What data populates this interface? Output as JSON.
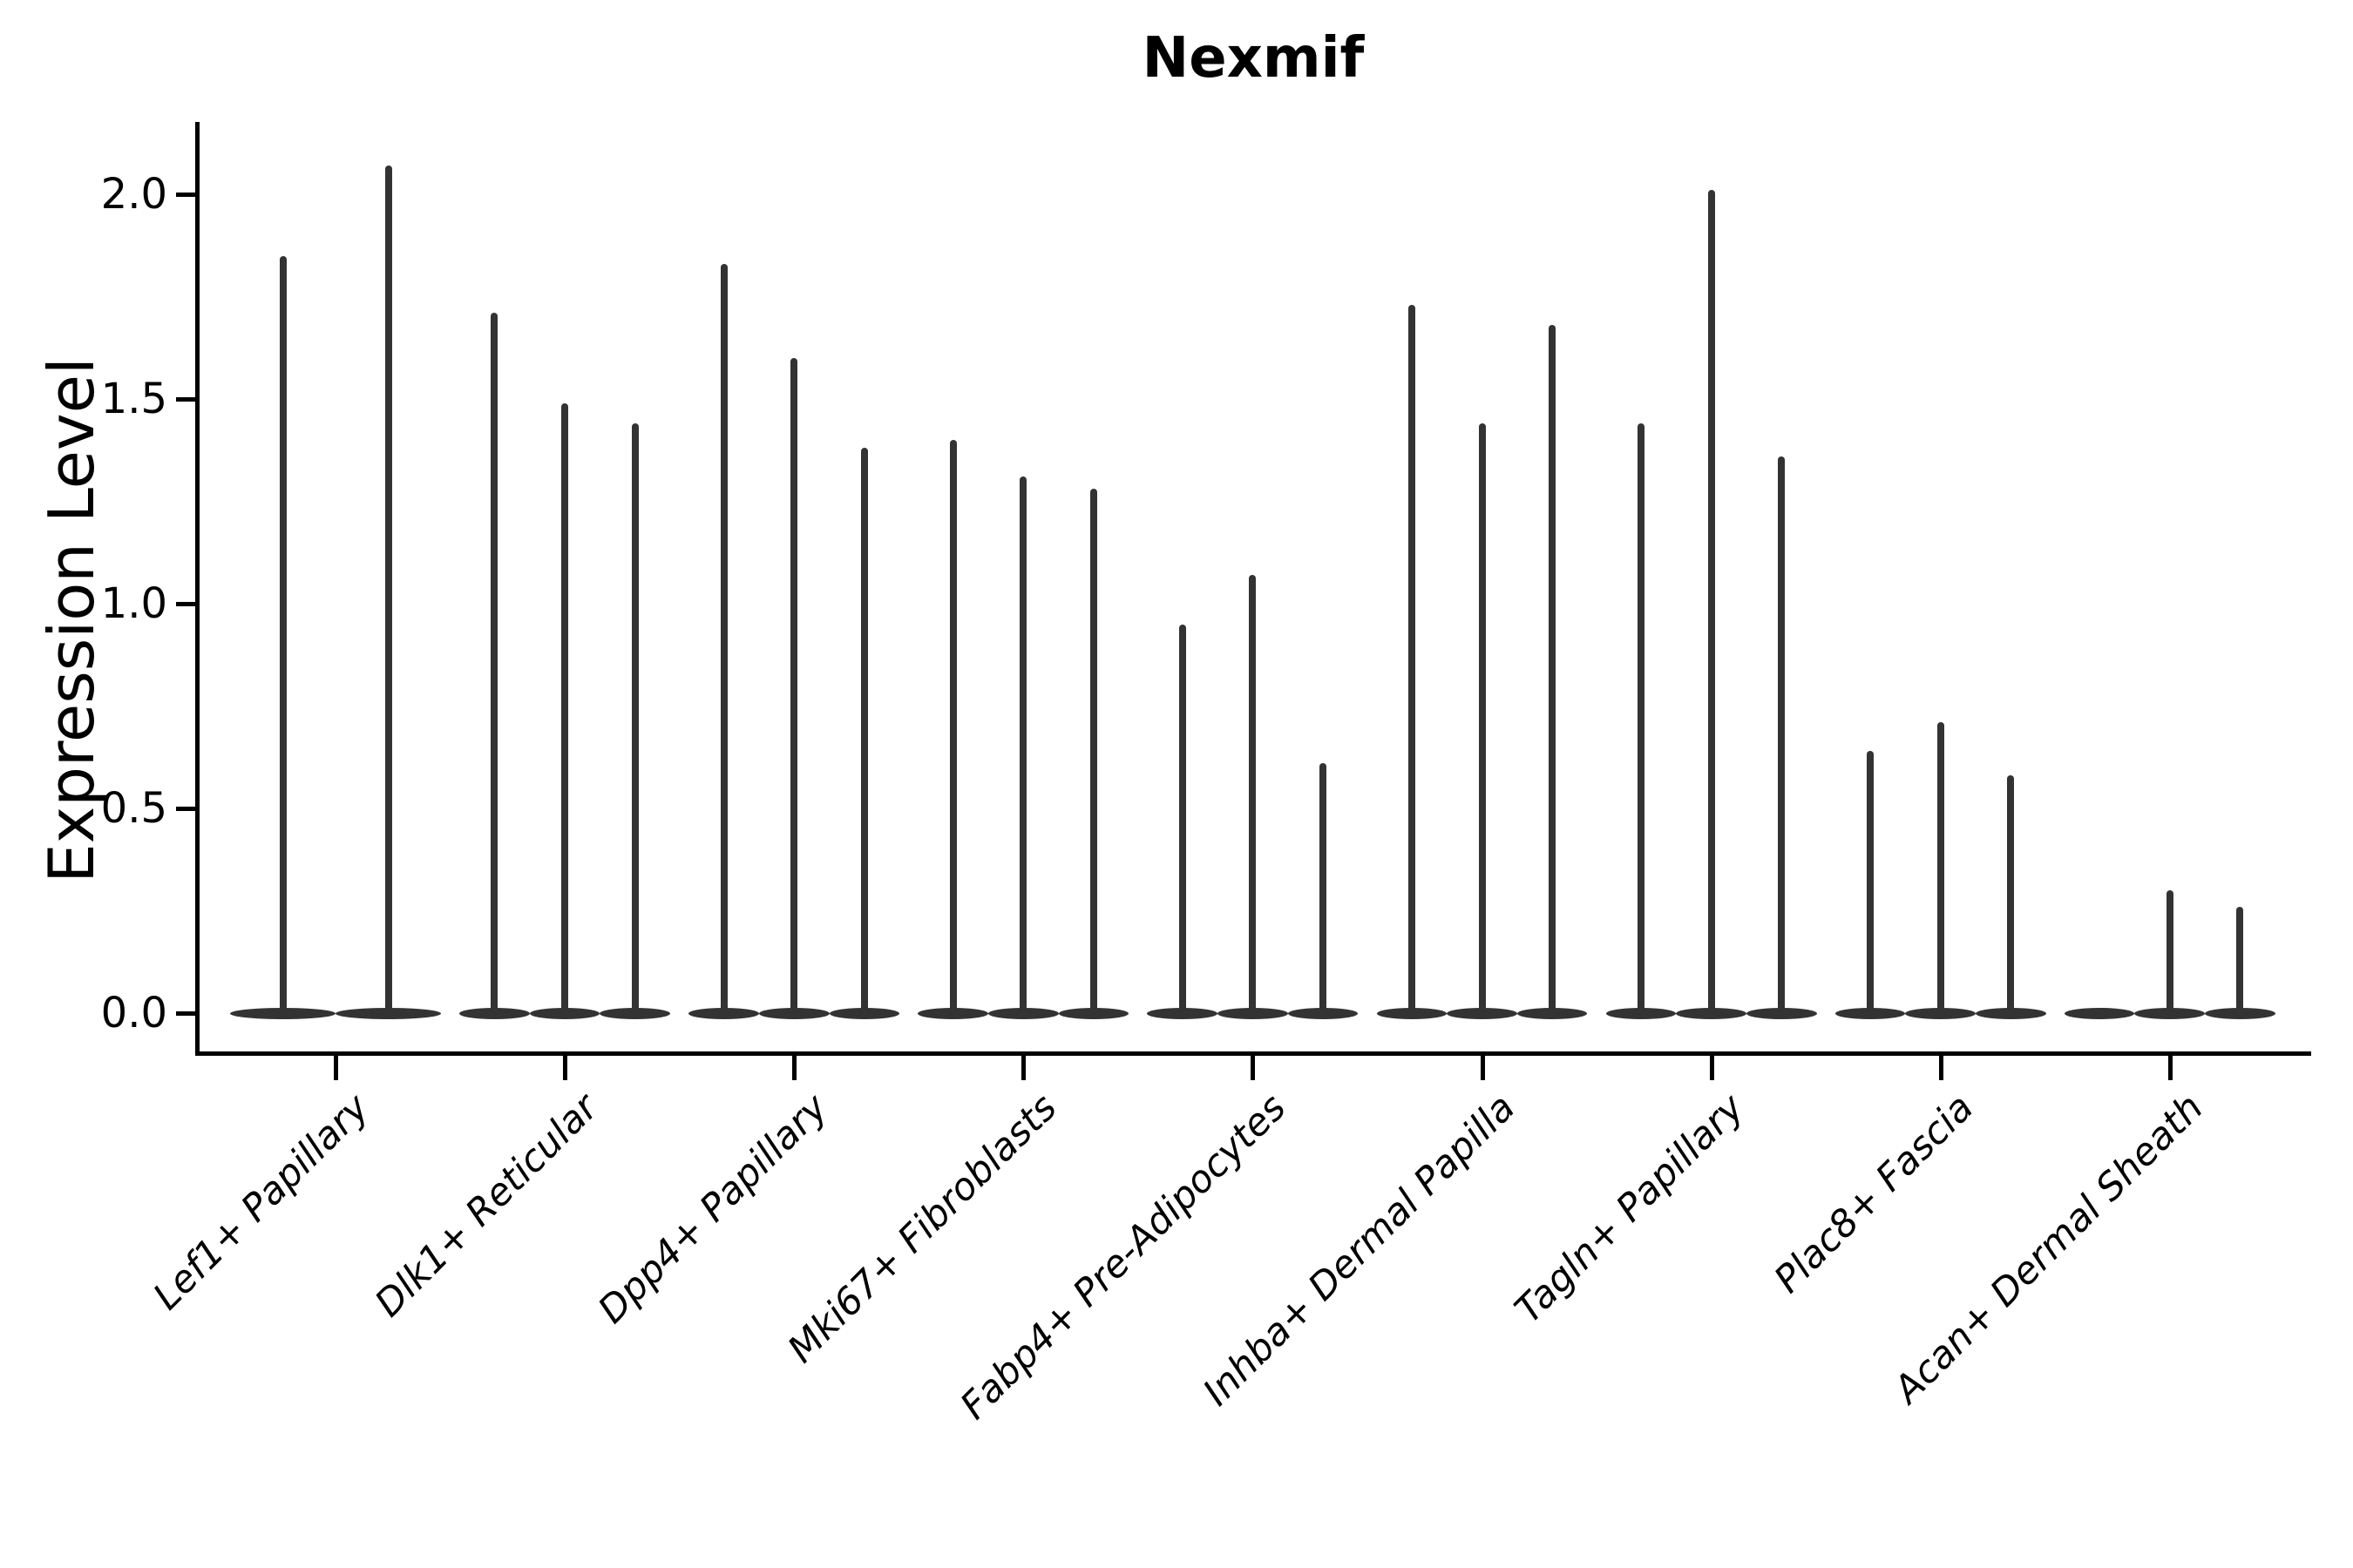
{
  "chart_data": {
    "type": "violin",
    "title": "Nexmif",
    "ylabel": "Expression Level",
    "xlabel": "",
    "yticks": [
      0.0,
      0.5,
      1.0,
      1.5,
      2.0
    ],
    "ylim": [
      -0.1,
      2.18
    ],
    "grid": false,
    "legend_position": "none",
    "violin_color": "#333333",
    "axis_color": "#000000",
    "categories": [
      "Lef1+ Papillary",
      "Dlk1+ Reticular",
      "Dpp4+ Papillary",
      "Mki67+ Fibroblasts",
      "Fabp4+ Pre-Adipocytes",
      "Inhba+ Dermal Papilla",
      "Tagln+ Papillary",
      "Plac8+ Fascia",
      "Acan+ Dermal Sheath"
    ],
    "violins": [
      {
        "category": "Lef1+ Papillary",
        "max_expression_values": [
          1.85,
          2.07
        ]
      },
      {
        "category": "Dlk1+ Reticular",
        "max_expression_values": [
          1.71,
          1.49,
          1.44
        ]
      },
      {
        "category": "Dpp4+ Papillary",
        "max_expression_values": [
          1.83,
          1.6,
          1.38
        ]
      },
      {
        "category": "Mki67+ Fibroblasts",
        "max_expression_values": [
          1.4,
          1.31,
          1.28
        ]
      },
      {
        "category": "Fabp4+ Pre-Adipocytes",
        "max_expression_values": [
          0.95,
          1.07,
          0.61
        ]
      },
      {
        "category": "Inhba+ Dermal Papilla",
        "max_expression_values": [
          1.73,
          1.44,
          1.68
        ]
      },
      {
        "category": "Tagln+ Papillary",
        "max_expression_values": [
          1.44,
          2.01,
          1.36
        ]
      },
      {
        "category": "Plac8+ Fascia",
        "max_expression_values": [
          0.64,
          0.71,
          0.58
        ]
      },
      {
        "category": "Acan+ Dermal Sheath",
        "max_expression_values": [
          0.0,
          0.3,
          0.26
        ]
      }
    ]
  }
}
